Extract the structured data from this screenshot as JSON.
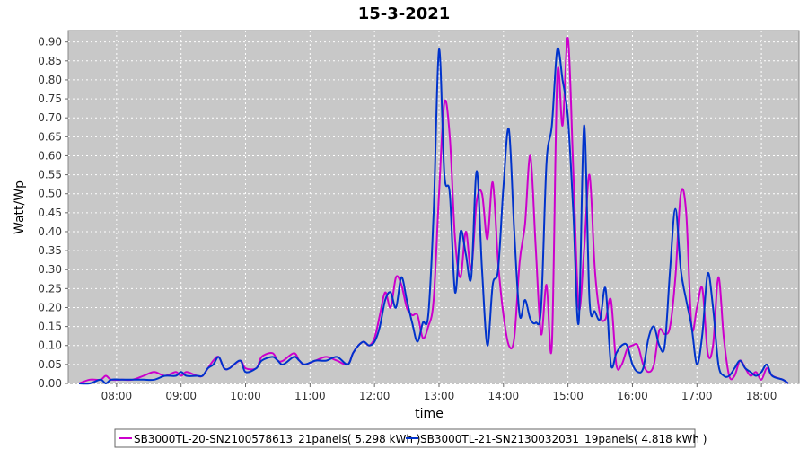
{
  "chart_data": {
    "type": "line",
    "title": "15-3-2021",
    "xlabel": "time",
    "ylabel": "Watt/Wp",
    "xlim": [
      "07:15",
      "18:35"
    ],
    "ylim": [
      0,
      0.93
    ],
    "yticks": [
      "0.00",
      "0.05",
      "0.10",
      "0.15",
      "0.20",
      "0.25",
      "0.30",
      "0.35",
      "0.40",
      "0.45",
      "0.50",
      "0.55",
      "0.60",
      "0.65",
      "0.70",
      "0.75",
      "0.80",
      "0.85",
      "0.90"
    ],
    "xticks": [
      "08:00",
      "09:00",
      "10:00",
      "11:00",
      "12:00",
      "13:00",
      "14:00",
      "15:00",
      "16:00",
      "17:00",
      "18:00"
    ],
    "grid": true,
    "legend_position": "bottom",
    "colors": {
      "plot_bg": "#c8c8c8",
      "grid": "#ffffff"
    },
    "series": [
      {
        "name": "SB3000TL-20-SN2100578613_21panels( 5.298 kWh )",
        "color": "#cc00cc",
        "x": [
          "07:25",
          "07:35",
          "07:45",
          "07:50",
          "07:55",
          "08:05",
          "08:15",
          "08:25",
          "08:35",
          "08:45",
          "08:55",
          "09:00",
          "09:05",
          "09:15",
          "09:20",
          "09:25",
          "09:30",
          "09:35",
          "09:40",
          "09:45",
          "09:55",
          "10:00",
          "10:10",
          "10:15",
          "10:25",
          "10:30",
          "10:35",
          "10:45",
          "10:50",
          "10:55",
          "11:05",
          "11:15",
          "11:25",
          "11:35",
          "11:40",
          "11:45",
          "11:50",
          "11:55",
          "12:00",
          "12:05",
          "12:10",
          "12:15",
          "12:20",
          "12:25",
          "12:30",
          "12:35",
          "12:40",
          "12:45",
          "12:50",
          "12:55",
          "13:00",
          "13:05",
          "13:10",
          "13:15",
          "13:20",
          "13:25",
          "13:30",
          "13:35",
          "13:40",
          "13:45",
          "13:50",
          "13:55",
          "14:00",
          "14:05",
          "14:10",
          "14:15",
          "14:20",
          "14:25",
          "14:30",
          "14:35",
          "14:40",
          "14:45",
          "14:50",
          "14:55",
          "15:00",
          "15:05",
          "15:10",
          "15:15",
          "15:20",
          "15:25",
          "15:30",
          "15:35",
          "15:40",
          "15:45",
          "15:50",
          "15:55",
          "16:00",
          "16:05",
          "16:10",
          "16:15",
          "16:20",
          "16:25",
          "16:30",
          "16:35",
          "16:40",
          "16:45",
          "16:50",
          "16:55",
          "17:00",
          "17:05",
          "17:10",
          "17:15",
          "17:20",
          "17:25",
          "17:30",
          "17:35",
          "17:40",
          "17:45",
          "17:50",
          "17:55",
          "18:00",
          "18:05",
          "18:10",
          "18:20",
          "18:25"
        ],
        "y": [
          0.0,
          0.01,
          0.01,
          0.02,
          0.01,
          0.01,
          0.01,
          0.02,
          0.03,
          0.02,
          0.03,
          0.02,
          0.03,
          0.02,
          0.02,
          0.04,
          0.06,
          0.07,
          0.04,
          0.04,
          0.06,
          0.04,
          0.04,
          0.07,
          0.08,
          0.06,
          0.06,
          0.08,
          0.06,
          0.05,
          0.06,
          0.07,
          0.06,
          0.05,
          0.08,
          0.1,
          0.11,
          0.1,
          0.12,
          0.18,
          0.24,
          0.2,
          0.28,
          0.26,
          0.2,
          0.18,
          0.18,
          0.12,
          0.15,
          0.22,
          0.5,
          0.74,
          0.65,
          0.38,
          0.28,
          0.4,
          0.3,
          0.48,
          0.5,
          0.38,
          0.53,
          0.32,
          0.18,
          0.1,
          0.12,
          0.32,
          0.42,
          0.6,
          0.36,
          0.13,
          0.26,
          0.1,
          0.81,
          0.68,
          0.91,
          0.56,
          0.2,
          0.35,
          0.55,
          0.3,
          0.18,
          0.17,
          0.22,
          0.05,
          0.05,
          0.09,
          0.1,
          0.1,
          0.05,
          0.03,
          0.05,
          0.14,
          0.13,
          0.15,
          0.28,
          0.5,
          0.45,
          0.15,
          0.2,
          0.25,
          0.08,
          0.1,
          0.28,
          0.12,
          0.02,
          0.02,
          0.06,
          0.04,
          0.02,
          0.03,
          0.01,
          0.04,
          0.02,
          0.01,
          0.0
        ],
        "annotation": "( 5.298 kWh )"
      },
      {
        "name": "SB3000TL-21-SN2130032031_19panels( 4.818 kWh )",
        "color": "#0033cc",
        "x": [
          "07:25",
          "07:35",
          "07:45",
          "07:50",
          "07:55",
          "08:05",
          "08:15",
          "08:25",
          "08:35",
          "08:45",
          "08:55",
          "09:00",
          "09:05",
          "09:15",
          "09:20",
          "09:25",
          "09:30",
          "09:35",
          "09:40",
          "09:45",
          "09:55",
          "10:00",
          "10:10",
          "10:15",
          "10:25",
          "10:30",
          "10:35",
          "10:45",
          "10:50",
          "10:55",
          "11:05",
          "11:15",
          "11:25",
          "11:35",
          "11:40",
          "11:45",
          "11:50",
          "11:55",
          "12:00",
          "12:05",
          "12:10",
          "12:15",
          "12:20",
          "12:25",
          "12:30",
          "12:35",
          "12:40",
          "12:45",
          "12:50",
          "12:55",
          "13:00",
          "13:05",
          "13:10",
          "13:15",
          "13:20",
          "13:25",
          "13:30",
          "13:35",
          "13:40",
          "13:45",
          "13:50",
          "13:55",
          "14:00",
          "14:05",
          "14:10",
          "14:15",
          "14:20",
          "14:25",
          "14:30",
          "14:35",
          "14:40",
          "14:45",
          "14:50",
          "14:55",
          "15:00",
          "15:05",
          "15:10",
          "15:15",
          "15:20",
          "15:25",
          "15:30",
          "15:35",
          "15:40",
          "15:45",
          "15:50",
          "15:55",
          "16:00",
          "16:05",
          "16:10",
          "16:15",
          "16:20",
          "16:25",
          "16:30",
          "16:35",
          "16:40",
          "16:45",
          "16:50",
          "16:55",
          "17:00",
          "17:05",
          "17:10",
          "17:15",
          "17:20",
          "17:25",
          "17:30",
          "17:35",
          "17:40",
          "17:45",
          "17:50",
          "17:55",
          "18:00",
          "18:05",
          "18:10",
          "18:20",
          "18:25"
        ],
        "y": [
          0.0,
          0.0,
          0.01,
          0.0,
          0.01,
          0.01,
          0.01,
          0.01,
          0.01,
          0.02,
          0.02,
          0.03,
          0.02,
          0.02,
          0.02,
          0.04,
          0.05,
          0.07,
          0.04,
          0.04,
          0.06,
          0.03,
          0.04,
          0.06,
          0.07,
          0.06,
          0.05,
          0.07,
          0.06,
          0.05,
          0.06,
          0.06,
          0.07,
          0.05,
          0.08,
          0.1,
          0.11,
          0.1,
          0.11,
          0.15,
          0.22,
          0.24,
          0.2,
          0.28,
          0.22,
          0.16,
          0.11,
          0.16,
          0.18,
          0.45,
          0.88,
          0.55,
          0.5,
          0.24,
          0.4,
          0.34,
          0.28,
          0.56,
          0.3,
          0.1,
          0.26,
          0.3,
          0.52,
          0.67,
          0.4,
          0.18,
          0.22,
          0.17,
          0.16,
          0.2,
          0.58,
          0.68,
          0.88,
          0.8,
          0.7,
          0.45,
          0.16,
          0.68,
          0.22,
          0.19,
          0.17,
          0.25,
          0.05,
          0.08,
          0.1,
          0.1,
          0.05,
          0.03,
          0.04,
          0.12,
          0.15,
          0.1,
          0.1,
          0.3,
          0.46,
          0.3,
          0.22,
          0.15,
          0.05,
          0.13,
          0.29,
          0.2,
          0.05,
          0.02,
          0.02,
          0.04,
          0.06,
          0.04,
          0.03,
          0.02,
          0.03,
          0.05,
          0.02,
          0.01,
          0.0
        ],
        "annotation": "( 4.818 kWh )"
      }
    ]
  }
}
